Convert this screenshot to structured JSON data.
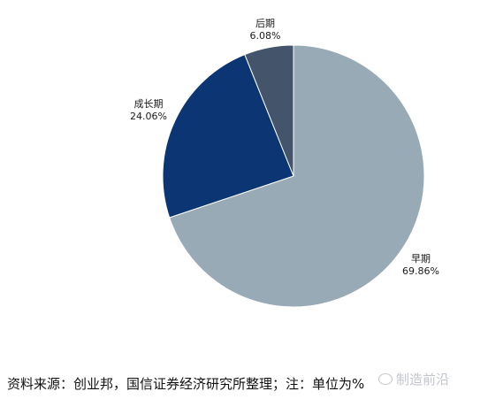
{
  "chart_data": {
    "type": "pie",
    "title": "",
    "slices": [
      {
        "name": "早期",
        "value": 69.86,
        "value_label": "69.86%",
        "color": "#99aab7"
      },
      {
        "name": "成长期",
        "value": 24.06,
        "value_label": "24.06%",
        "color": "#0c3574"
      },
      {
        "name": "后期",
        "value": 6.08,
        "value_label": "6.08%",
        "color": "#44546a"
      }
    ],
    "start_angle_deg": 0,
    "direction": "clockwise",
    "legend": "none",
    "label_position": "outside"
  },
  "footer": {
    "source_note": "资料来源：创业邦，国信证券经济研究所整理；注：单位为%"
  },
  "watermark": {
    "text": "制造前沿",
    "icon": "wechat-icon"
  }
}
